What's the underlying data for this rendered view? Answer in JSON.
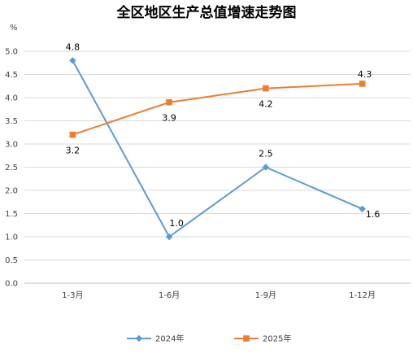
{
  "chart_data": {
    "type": "line",
    "title": "全区地区生产总值增速走势图",
    "ylabel": "%",
    "xlabel": "",
    "categories": [
      "1-3月",
      "1-6月",
      "1-9月",
      "1-12月"
    ],
    "ylim": [
      0,
      5
    ],
    "yticks": [
      "0.0",
      "0.5",
      "1.0",
      "1.5",
      "2.0",
      "2.5",
      "3.0",
      "3.5",
      "4.0",
      "4.5",
      "5.0"
    ],
    "grid": true,
    "legend_position": "bottom",
    "series": [
      {
        "name": "2024年",
        "values": [
          4.8,
          1.0,
          2.5,
          1.6
        ],
        "labels": [
          "4.8",
          "1.0",
          "2.5",
          "1.6"
        ],
        "color": "#5b9bd5",
        "marker": "diamond"
      },
      {
        "name": "2025年",
        "values": [
          3.2,
          3.9,
          4.2,
          4.3
        ],
        "labels": [
          "3.2",
          "3.9",
          "4.2",
          "4.3"
        ],
        "color": "#ed7d31",
        "marker": "square"
      }
    ]
  }
}
